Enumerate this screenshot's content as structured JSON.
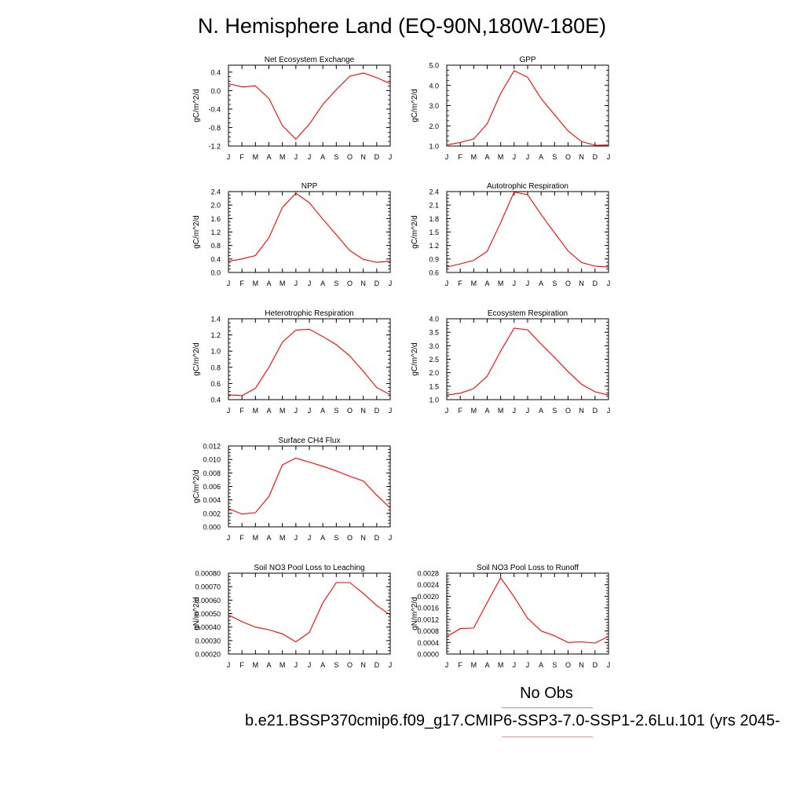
{
  "title": "N. Hemisphere Land (EQ-90N,180W-180E)",
  "legend": {
    "obs_label": "No Obs",
    "obs_color": "#8c8cff",
    "case_label": "b.e21.BSSP370cmip6.f09_g17.CMIP6-SSP3-7.0-SSP1-2.6Lu.101 (yrs 2045-",
    "case_color": "#ff8c8c"
  },
  "line_color": "#ff0000",
  "chart_data": [
    {
      "type": "line",
      "title": "Net Ecosystem Exchange",
      "ylabel": "gC/m^2/d",
      "x": [
        "J",
        "F",
        "M",
        "A",
        "M",
        "J",
        "J",
        "A",
        "S",
        "O",
        "N",
        "D",
        "J"
      ],
      "values": [
        0.15,
        0.08,
        0.1,
        -0.17,
        -0.76,
        -1.05,
        -0.73,
        -0.3,
        0.02,
        0.31,
        0.38,
        0.28,
        0.15
      ],
      "ylim": [
        -1.2,
        0.55
      ],
      "yticks": [
        0.4,
        0.0,
        -0.4,
        -0.8,
        -1.2
      ],
      "ytick_labels": [
        "0.4",
        "0.0",
        "-0.4",
        "-0.8",
        "-1.2"
      ]
    },
    {
      "type": "line",
      "title": "GPP",
      "ylabel": "gC/m^2/d",
      "x": [
        "J",
        "F",
        "M",
        "A",
        "M",
        "J",
        "J",
        "A",
        "S",
        "O",
        "N",
        "D",
        "J"
      ],
      "values": [
        1.05,
        1.18,
        1.35,
        2.1,
        3.6,
        4.73,
        4.4,
        3.35,
        2.55,
        1.75,
        1.22,
        1.04,
        1.05
      ],
      "ylim": [
        1.0,
        5.0
      ],
      "yticks": [
        5.0,
        4.0,
        3.0,
        2.0,
        1.0
      ],
      "ytick_labels": [
        "5.0",
        "4.0",
        "3.0",
        "2.0",
        "1.0"
      ]
    },
    {
      "type": "line",
      "title": "NPP",
      "ylabel": "gC/m^2/d",
      "x": [
        "J",
        "F",
        "M",
        "A",
        "M",
        "J",
        "J",
        "A",
        "S",
        "O",
        "N",
        "D",
        "J"
      ],
      "values": [
        0.33,
        0.4,
        0.5,
        1.03,
        1.93,
        2.35,
        2.07,
        1.58,
        1.12,
        0.65,
        0.39,
        0.3,
        0.33
      ],
      "ylim": [
        0.0,
        2.4
      ],
      "yticks": [
        2.4,
        2.0,
        1.6,
        1.2,
        0.8,
        0.4,
        0.0
      ],
      "ytick_labels": [
        "2.4",
        "2.0",
        "1.6",
        "1.2",
        "0.8",
        "0.4",
        "0.0"
      ]
    },
    {
      "type": "line",
      "title": "Autotrophic Respiration",
      "ylabel": "gC/m^2/d",
      "x": [
        "J",
        "F",
        "M",
        "A",
        "M",
        "J",
        "J",
        "A",
        "S",
        "O",
        "N",
        "D",
        "J"
      ],
      "values": [
        0.72,
        0.79,
        0.87,
        1.07,
        1.71,
        2.39,
        2.33,
        1.89,
        1.48,
        1.08,
        0.82,
        0.74,
        0.72
      ],
      "ylim": [
        0.6,
        2.4
      ],
      "yticks": [
        2.4,
        2.1,
        1.8,
        1.5,
        1.2,
        0.9,
        0.6
      ],
      "ytick_labels": [
        "2.4",
        "2.1",
        "1.8",
        "1.5",
        "1.2",
        "0.9",
        "0.6"
      ]
    },
    {
      "type": "line",
      "title": "Heterotrophic Respiration",
      "ylabel": "gC/m^2/d",
      "x": [
        "J",
        "F",
        "M",
        "A",
        "M",
        "J",
        "J",
        "A",
        "S",
        "O",
        "N",
        "D",
        "J"
      ],
      "values": [
        0.46,
        0.45,
        0.54,
        0.8,
        1.11,
        1.26,
        1.27,
        1.18,
        1.08,
        0.94,
        0.75,
        0.55,
        0.46
      ],
      "ylim": [
        0.4,
        1.4
      ],
      "yticks": [
        1.4,
        1.2,
        1.0,
        0.8,
        0.6,
        0.4
      ],
      "ytick_labels": [
        "1.4",
        "1.2",
        "1.0",
        "0.8",
        "0.6",
        "0.4"
      ]
    },
    {
      "type": "line",
      "title": "Ecosystem Respiration",
      "ylabel": "gC/m^2/d",
      "x": [
        "J",
        "F",
        "M",
        "A",
        "M",
        "J",
        "J",
        "A",
        "S",
        "O",
        "N",
        "D",
        "J"
      ],
      "values": [
        1.17,
        1.24,
        1.41,
        1.87,
        2.8,
        3.65,
        3.59,
        3.06,
        2.56,
        2.04,
        1.57,
        1.29,
        1.17
      ],
      "ylim": [
        1.0,
        4.0
      ],
      "yticks": [
        4.0,
        3.5,
        3.0,
        2.5,
        2.0,
        1.5,
        1.0
      ],
      "ytick_labels": [
        "4.0",
        "3.5",
        "3.0",
        "2.5",
        "2.0",
        "1.5",
        "1.0"
      ]
    },
    {
      "type": "line",
      "title": "Surface CH4 Flux",
      "ylabel": "gC/m^2/d",
      "x": [
        "J",
        "F",
        "M",
        "A",
        "M",
        "J",
        "J",
        "A",
        "S",
        "O",
        "N",
        "D",
        "J"
      ],
      "values": [
        0.0027,
        0.0019,
        0.0021,
        0.0045,
        0.0092,
        0.0102,
        0.0096,
        0.009,
        0.0083,
        0.0075,
        0.0068,
        0.0047,
        0.0028
      ],
      "ylim": [
        0.0,
        0.012
      ],
      "yticks": [
        0.012,
        0.01,
        0.008,
        0.006,
        0.004,
        0.002,
        0.0
      ],
      "ytick_labels": [
        "0.012",
        "0.010",
        "0.008",
        "0.006",
        "0.004",
        "0.002",
        "0.000"
      ]
    },
    {
      "type": "line",
      "title": "Soil NO3 Pool Loss to Leaching",
      "ylabel": "gN/m^2/d",
      "x": [
        "J",
        "F",
        "M",
        "A",
        "M",
        "J",
        "J",
        "A",
        "S",
        "O",
        "N",
        "D",
        "J"
      ],
      "values": [
        0.00049,
        0.00044,
        0.0004,
        0.00038,
        0.00035,
        0.00029,
        0.00036,
        0.00058,
        0.00073,
        0.00073,
        0.00065,
        0.00056,
        0.00049
      ],
      "ylim": [
        0.0002,
        0.0008
      ],
      "yticks": [
        0.0008,
        0.0007,
        0.0006,
        0.0005,
        0.0004,
        0.0003,
        0.0002
      ],
      "ytick_labels": [
        "0.00080",
        "0.00070",
        "0.00060",
        "0.00050",
        "0.00040",
        "0.00030",
        "0.00020"
      ]
    },
    {
      "type": "line",
      "title": "Soil NO3 Pool Loss to Runoff",
      "ylabel": "gN/m^2/d",
      "x": [
        "J",
        "F",
        "M",
        "A",
        "M",
        "J",
        "J",
        "A",
        "S",
        "O",
        "N",
        "D",
        "J"
      ],
      "values": [
        0.0006,
        0.00088,
        0.0009,
        0.00178,
        0.00264,
        0.00198,
        0.00124,
        0.0008,
        0.00063,
        0.0004,
        0.00042,
        0.00038,
        0.00061
      ],
      "ylim": [
        0.0,
        0.0028
      ],
      "yticks": [
        0.0028,
        0.0024,
        0.002,
        0.0016,
        0.0012,
        0.0008,
        0.0004,
        0.0
      ],
      "ytick_labels": [
        "0.0028",
        "0.0024",
        "0.0020",
        "0.0016",
        "0.0012",
        "0.0008",
        "0.0004",
        "0.0000"
      ]
    }
  ]
}
